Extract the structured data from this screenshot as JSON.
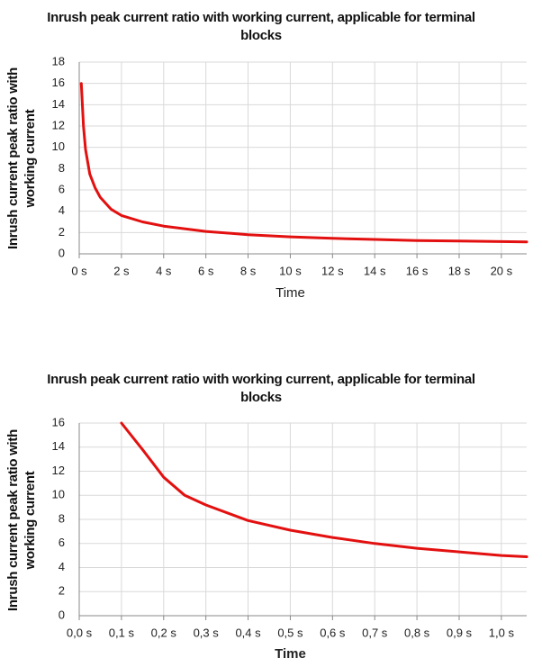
{
  "chart_data": [
    {
      "type": "line",
      "title": "Inrush peak current ratio with working current, applicable for terminal blocks",
      "x_label": "Time",
      "y_label": "Inrush current peak ratio with working current",
      "x": [
        0.1,
        0.2,
        0.3,
        0.5,
        0.75,
        1,
        1.5,
        2,
        3,
        4,
        6,
        8,
        10,
        12,
        14,
        16,
        18,
        20,
        21.2
      ],
      "series": [
        {
          "color": "#e31010",
          "values": [
            16,
            12,
            9.8,
            7.5,
            6.2,
            5.3,
            4.2,
            3.6,
            3.0,
            2.6,
            2.1,
            1.8,
            1.6,
            1.45,
            1.35,
            1.25,
            1.2,
            1.15,
            1.12
          ]
        }
      ],
      "xlim": [
        0,
        21.2
      ],
      "ylim": [
        0,
        18
      ],
      "xticks": [
        {
          "value": 0,
          "label": "0 s"
        },
        {
          "value": 2,
          "label": "2 s"
        },
        {
          "value": 4,
          "label": "4 s"
        },
        {
          "value": 6,
          "label": "6 s"
        },
        {
          "value": 8,
          "label": "8 s"
        },
        {
          "value": 10,
          "label": "10 s"
        },
        {
          "value": 12,
          "label": "12 s"
        },
        {
          "value": 14,
          "label": "14 s"
        },
        {
          "value": 16,
          "label": "16 s"
        },
        {
          "value": 18,
          "label": "18 s"
        },
        {
          "value": 20,
          "label": "20 s"
        }
      ],
      "yticks": [
        0,
        2,
        4,
        6,
        8,
        10,
        12,
        14,
        16,
        18
      ],
      "grid": true
    },
    {
      "type": "line",
      "title": "Inrush peak current ratio with working current, applicable for terminal blocks",
      "x_label": "Time",
      "y_label": "Inrush current peak ratio with working current",
      "x": [
        0.1,
        0.15,
        0.2,
        0.25,
        0.3,
        0.4,
        0.5,
        0.6,
        0.7,
        0.8,
        0.9,
        1.0,
        1.06
      ],
      "series": [
        {
          "color": "#e31010",
          "values": [
            16,
            13.8,
            11.5,
            10,
            9.2,
            7.9,
            7.1,
            6.5,
            6.0,
            5.6,
            5.3,
            5.0,
            4.9
          ]
        }
      ],
      "xlim": [
        0,
        1.06
      ],
      "ylim": [
        0,
        16
      ],
      "xticks": [
        {
          "value": 0,
          "label": "0,0 s"
        },
        {
          "value": 0.1,
          "label": "0,1 s"
        },
        {
          "value": 0.2,
          "label": "0,2 s"
        },
        {
          "value": 0.3,
          "label": "0,3 s"
        },
        {
          "value": 0.4,
          "label": "0,4 s"
        },
        {
          "value": 0.5,
          "label": "0,5 s"
        },
        {
          "value": 0.6,
          "label": "0,6 s"
        },
        {
          "value": 0.7,
          "label": "0,7 s"
        },
        {
          "value": 0.8,
          "label": "0,8 s"
        },
        {
          "value": 0.9,
          "label": "0,9 s"
        },
        {
          "value": 1.0,
          "label": "1,0 s"
        }
      ],
      "yticks": [
        0,
        2,
        4,
        6,
        8,
        10,
        12,
        14,
        16
      ],
      "grid": true
    }
  ]
}
